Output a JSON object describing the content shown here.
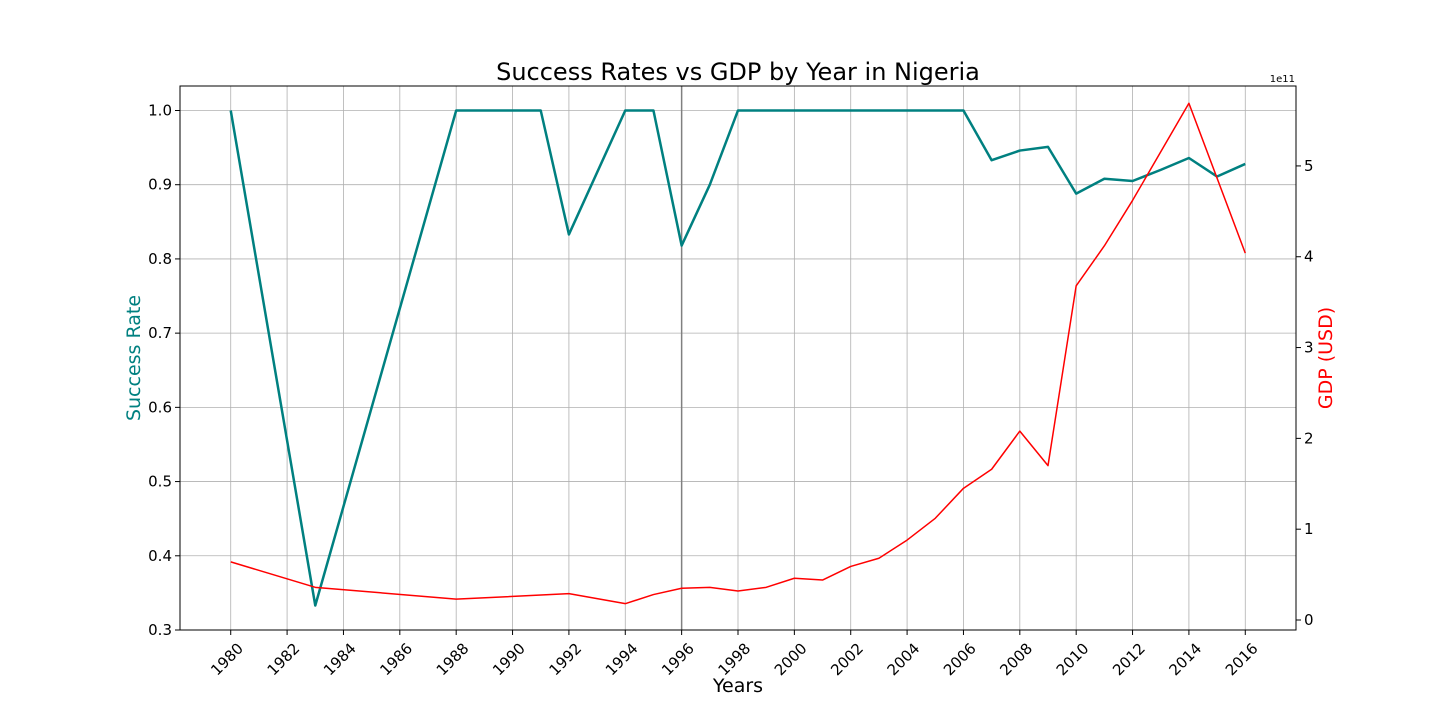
{
  "chart_data": {
    "type": "line",
    "title": "Success Rates vs GDP by Year in Nigeria",
    "xlabel": "Years",
    "ylabel": "Success Rate",
    "y2label": "GDP (USD)",
    "y2_offset_label": "1e11",
    "xlim": [
      1978.2,
      2017.8
    ],
    "ylim": [
      0.3,
      1.033
    ],
    "y2lim": [
      -0.11,
      5.88
    ],
    "x_ticks": [
      1980,
      1982,
      1984,
      1986,
      1988,
      1990,
      1992,
      1994,
      1996,
      1998,
      2000,
      2002,
      2004,
      2006,
      2008,
      2010,
      2012,
      2014,
      2016
    ],
    "y_ticks": [
      0.3,
      0.4,
      0.5,
      0.6,
      0.7,
      0.8,
      0.9,
      1.0
    ],
    "y_tick_labels": [
      "0.3",
      "0.4",
      "0.5",
      "0.6",
      "0.7",
      "0.8",
      "0.9",
      "1.0"
    ],
    "y2_ticks": [
      0,
      1,
      2,
      3,
      4,
      5
    ],
    "y2_tick_labels": [
      "0",
      "1",
      "2",
      "3",
      "4",
      "5"
    ],
    "grid": true,
    "vline_x": 1996,
    "series": [
      {
        "name": "Success Rate",
        "axis": "left",
        "color": "#008080",
        "x": [
          1980,
          1983,
          1988,
          1989,
          1990,
          1991,
          1992,
          1994,
          1995,
          1996,
          1997,
          1998,
          1999,
          2000,
          2001,
          2002,
          2003,
          2004,
          2005,
          2006,
          2007,
          2008,
          2009,
          2010,
          2011,
          2012,
          2013,
          2014,
          2015,
          2016
        ],
        "values": [
          1.0,
          0.333,
          1.0,
          1.0,
          1.0,
          1.0,
          0.833,
          1.0,
          1.0,
          0.818,
          0.9,
          1.0,
          1.0,
          1.0,
          1.0,
          1.0,
          1.0,
          1.0,
          1.0,
          1.0,
          0.933,
          0.946,
          0.951,
          0.888,
          0.908,
          0.905,
          0.92,
          0.936,
          0.911,
          0.928
        ]
      },
      {
        "name": "GDP (USD)",
        "axis": "right",
        "color": "#ff0000",
        "x": [
          1980,
          1983,
          1988,
          1992,
          1994,
          1995,
          1996,
          1997,
          1998,
          1999,
          2000,
          2001,
          2002,
          2003,
          2004,
          2005,
          2006,
          2007,
          2008,
          2009,
          2010,
          2011,
          2012,
          2014,
          2016
        ],
        "values": [
          0.64,
          0.36,
          0.23,
          0.29,
          0.18,
          0.28,
          0.35,
          0.36,
          0.32,
          0.36,
          0.46,
          0.44,
          0.59,
          0.68,
          0.88,
          1.12,
          1.45,
          1.66,
          2.08,
          1.7,
          3.68,
          4.12,
          4.62,
          5.69,
          4.04
        ]
      }
    ]
  }
}
